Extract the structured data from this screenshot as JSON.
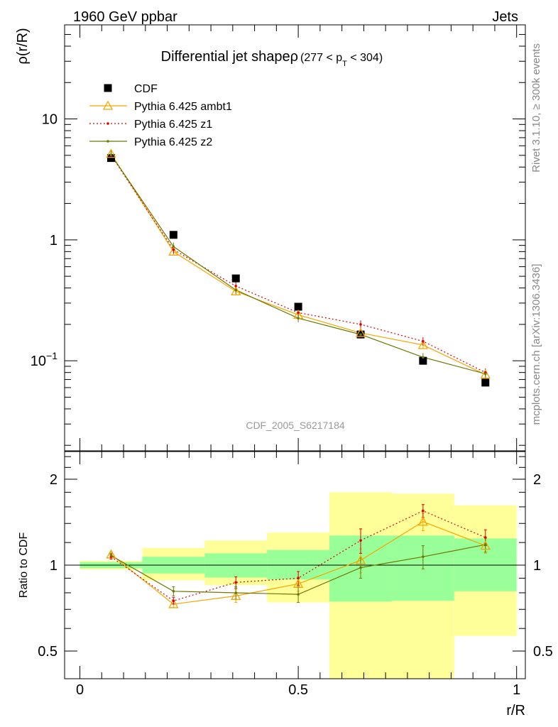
{
  "header": {
    "left": "1960 GeV ppbar",
    "right": "Jets"
  },
  "side_labels": {
    "rivet": "Rivet 3.1.10, ≥ 300k events",
    "mcplots": "mcplots.cern.ch [arXiv:1306.3436]"
  },
  "chart_data": [
    {
      "type": "line",
      "title": "Differential jet shapeρ (277 < p_T < 304)",
      "title_main": "Differential jet shapeρ",
      "title_sub_pre": "(277 < p",
      "title_sub_index": "T",
      "title_sub_post": " < 304)",
      "watermark": "CDF_2005_S6217184",
      "xlabel": "r/R",
      "ylabel": "ρ(r/R)",
      "yscale": "log",
      "xlim": [
        -0.035,
        1.02
      ],
      "ylim": [
        0.018,
        60
      ],
      "yticks": [
        {
          "v": 10,
          "label": "10"
        },
        {
          "v": 1,
          "label": "1"
        },
        {
          "v": 0.1,
          "label": "10^-1"
        }
      ],
      "x": [
        0.0714,
        0.2143,
        0.3571,
        0.5,
        0.6429,
        0.7857,
        0.9286
      ],
      "series": [
        {
          "name": "CDF",
          "color": "#000000",
          "marker": "square",
          "line": "none",
          "values": [
            4.75,
            1.1,
            0.48,
            0.28,
            0.165,
            0.1,
            0.066
          ]
        },
        {
          "name": "Pythia 6.425 ambt1",
          "color": "#f5a500",
          "marker": "triangle-open",
          "line": "solid",
          "values": [
            5.15,
            0.8,
            0.375,
            0.24,
            0.17,
            0.135,
            0.077
          ]
        },
        {
          "name": "Pythia 6.425 z1",
          "color": "#dd0000",
          "marker": "dot",
          "line": "dotted",
          "values": [
            5.0,
            0.83,
            0.415,
            0.25,
            0.2,
            0.145,
            0.08
          ]
        },
        {
          "name": "Pythia 6.425 z2",
          "color": "#6b7a00",
          "marker": "dot",
          "line": "solid",
          "values": [
            5.05,
            0.88,
            0.385,
            0.225,
            0.165,
            0.107,
            0.078
          ]
        }
      ]
    },
    {
      "type": "line",
      "title": "",
      "xlabel": "r/R",
      "ylabel": "Ratio to CDF",
      "yscale": "log",
      "xlim": [
        -0.035,
        1.02
      ],
      "ylim": [
        0.4,
        2.5
      ],
      "xticks": [
        {
          "v": 0,
          "label": "0"
        },
        {
          "v": 0.5,
          "label": "0.5"
        },
        {
          "v": 1,
          "label": "1"
        }
      ],
      "yticks": [
        {
          "v": 2,
          "label": "2"
        },
        {
          "v": 1,
          "label": "1"
        },
        {
          "v": 0.5,
          "label": "0.5"
        }
      ],
      "bin_edges": [
        0,
        0.1429,
        0.2857,
        0.4286,
        0.5714,
        0.7143,
        0.8571,
        1.0
      ],
      "uncertainty_bands": {
        "stat": {
          "color": "#99ff99",
          "lo": [
            0.975,
            0.935,
            0.905,
            0.89,
            0.745,
            0.75,
            0.81
          ],
          "hi": [
            1.025,
            1.07,
            1.1,
            1.13,
            1.27,
            1.27,
            1.24
          ]
        },
        "total": {
          "color": "#ffff99",
          "lo": [
            0.965,
            0.885,
            0.85,
            0.74,
            0.345,
            0.37,
            0.565
          ],
          "hi": [
            1.035,
            1.15,
            1.22,
            1.3,
            1.8,
            1.78,
            1.62
          ]
        }
      },
      "x": [
        0.0714,
        0.2143,
        0.3571,
        0.5,
        0.6429,
        0.7857,
        0.9286
      ],
      "series": [
        {
          "name": "Pythia 6.425 ambt1",
          "color": "#f5a500",
          "marker": "triangle-open",
          "line": "solid",
          "values": [
            1.09,
            0.73,
            0.78,
            0.86,
            1.04,
            1.42,
            1.17
          ],
          "err": [
            0.02,
            0.02,
            0.04,
            0.05,
            0.1,
            0.1,
            0.07
          ]
        },
        {
          "name": "Pythia 6.425 z1",
          "color": "#dd0000",
          "marker": "dot",
          "line": "dotted",
          "values": [
            1.07,
            0.75,
            0.87,
            0.9,
            1.22,
            1.55,
            1.25
          ],
          "err": [
            0.02,
            0.02,
            0.04,
            0.05,
            0.12,
            0.08,
            0.08
          ]
        },
        {
          "name": "Pythia 6.425 z2",
          "color": "#6b7a00",
          "marker": "dot",
          "line": "solid",
          "values": [
            1.08,
            0.81,
            0.8,
            0.79,
            0.98,
            1.07,
            1.18
          ],
          "err": [
            0.02,
            0.03,
            0.04,
            0.05,
            0.08,
            0.1,
            0.07
          ]
        }
      ],
      "reference_line": 1
    }
  ]
}
